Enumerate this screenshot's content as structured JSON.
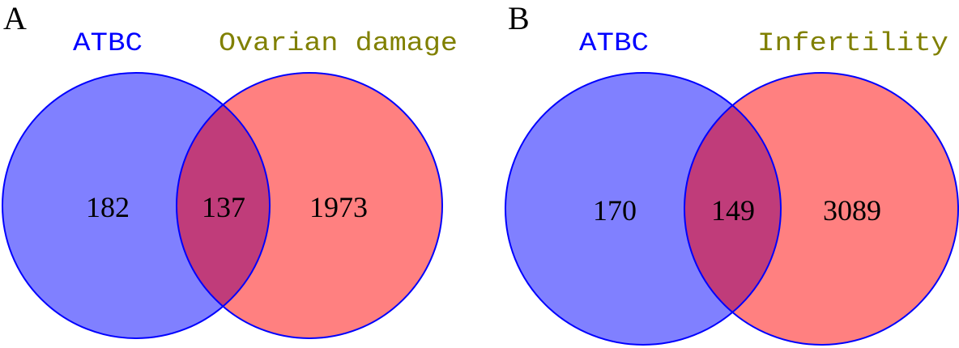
{
  "colors": {
    "left_set_fill": "#8080ff",
    "right_set_fill": "#ff8080",
    "overlap_fill": "#c03c7a",
    "outline": "#0000ff",
    "left_label": "#0000ff",
    "right_label": "#808000"
  },
  "panels": [
    {
      "letter": "A",
      "left_label": "ATBC",
      "right_label": "Ovarian damage",
      "left_only": "182",
      "overlap": "137",
      "right_only": "1973"
    },
    {
      "letter": "B",
      "left_label": "ATBC",
      "right_label": "Infertility",
      "left_only": "170",
      "overlap": "149",
      "right_only": "3089"
    }
  ]
}
